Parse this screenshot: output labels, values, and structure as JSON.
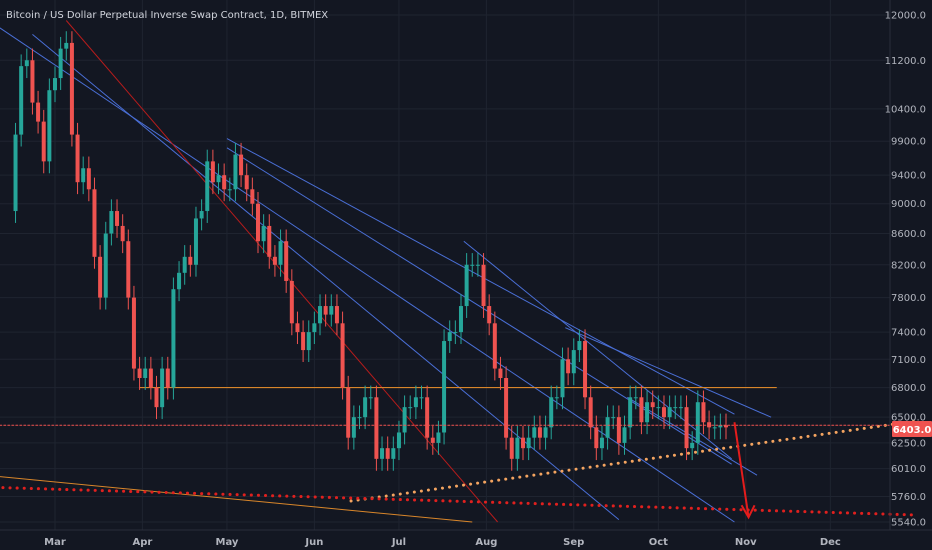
{
  "header": {
    "title": "Bitcoin / US Dollar Perpetual Inverse Swap Contract, 1D, BITMEX"
  },
  "colors": {
    "background": "#131722",
    "grid": "#1f2430",
    "up": "#26a69a",
    "down": "#ef5350",
    "blue_line": "#4a6fd6",
    "red_line": "#b71c1c",
    "orange_line": "#f7931a",
    "dotted_orange": "#f4a460",
    "dotted_red": "#e0201e",
    "price_tag": "#ef5350"
  },
  "chart_data": {
    "type": "candlestick",
    "title": "Bitcoin / US Dollar Perpetual Inverse Swap Contract, 1D, BITMEX",
    "x_tick_labels": [
      "Mar",
      "Apr",
      "May",
      "Jun",
      "Jul",
      "Aug",
      "Sep",
      "Oct",
      "Nov",
      "Dec"
    ],
    "y_tick_labels": [
      "12000.0",
      "11200.0",
      "10400.0",
      "9900.0",
      "9400.0",
      "9000.0",
      "8600.0",
      "8200.0",
      "7800.0",
      "7400.0",
      "7100.0",
      "6800.0",
      "6500.0",
      "6250.0",
      "6010.0",
      "5760.0",
      "5540.0"
    ],
    "y_scale": "log",
    "ylim": [
      5500,
      12400
    ],
    "last_price": 6403.0,
    "last_price_label": "6403.0",
    "candles_approx_daily_close": [
      [
        "2018-02-13",
        8900
      ],
      [
        "2018-02-15",
        10000
      ],
      [
        "2018-02-17",
        11100
      ],
      [
        "2018-02-19",
        11200
      ],
      [
        "2018-02-21",
        10500
      ],
      [
        "2018-02-23",
        10200
      ],
      [
        "2018-02-25",
        9600
      ],
      [
        "2018-02-27",
        10700
      ],
      [
        "2018-03-01",
        10900
      ],
      [
        "2018-03-03",
        11400
      ],
      [
        "2018-03-05",
        11500
      ],
      [
        "2018-03-07",
        10000
      ],
      [
        "2018-03-09",
        9300
      ],
      [
        "2018-03-11",
        9500
      ],
      [
        "2018-03-13",
        9200
      ],
      [
        "2018-03-15",
        8300
      ],
      [
        "2018-03-17",
        7800
      ],
      [
        "2018-03-19",
        8600
      ],
      [
        "2018-03-21",
        8900
      ],
      [
        "2018-03-23",
        8700
      ],
      [
        "2018-03-25",
        8500
      ],
      [
        "2018-03-27",
        7800
      ],
      [
        "2018-03-29",
        7000
      ],
      [
        "2018-03-31",
        6900
      ],
      [
        "2018-04-02",
        7000
      ],
      [
        "2018-04-04",
        6800
      ],
      [
        "2018-04-06",
        6600
      ],
      [
        "2018-04-08",
        7000
      ],
      [
        "2018-04-10",
        6800
      ],
      [
        "2018-04-12",
        7900
      ],
      [
        "2018-04-14",
        8100
      ],
      [
        "2018-04-16",
        8300
      ],
      [
        "2018-04-18",
        8200
      ],
      [
        "2018-04-20",
        8800
      ],
      [
        "2018-04-22",
        8900
      ],
      [
        "2018-04-24",
        9600
      ],
      [
        "2018-04-26",
        9300
      ],
      [
        "2018-04-28",
        9400
      ],
      [
        "2018-04-30",
        9200
      ],
      [
        "2018-05-02",
        9200
      ],
      [
        "2018-05-04",
        9700
      ],
      [
        "2018-05-06",
        9400
      ],
      [
        "2018-05-08",
        9200
      ],
      [
        "2018-05-10",
        9000
      ],
      [
        "2018-05-12",
        8500
      ],
      [
        "2018-05-14",
        8700
      ],
      [
        "2018-05-16",
        8300
      ],
      [
        "2018-05-18",
        8200
      ],
      [
        "2018-05-20",
        8500
      ],
      [
        "2018-05-22",
        8000
      ],
      [
        "2018-05-24",
        7500
      ],
      [
        "2018-05-26",
        7400
      ],
      [
        "2018-05-28",
        7200
      ],
      [
        "2018-05-30",
        7400
      ],
      [
        "2018-06-01",
        7500
      ],
      [
        "2018-06-03",
        7700
      ],
      [
        "2018-06-05",
        7600
      ],
      [
        "2018-06-07",
        7700
      ],
      [
        "2018-06-09",
        7500
      ],
      [
        "2018-06-11",
        6800
      ],
      [
        "2018-06-13",
        6300
      ],
      [
        "2018-06-15",
        6500
      ],
      [
        "2018-06-17",
        6500
      ],
      [
        "2018-06-19",
        6700
      ],
      [
        "2018-06-21",
        6700
      ],
      [
        "2018-06-23",
        6100
      ],
      [
        "2018-06-25",
        6200
      ],
      [
        "2018-06-27",
        6100
      ],
      [
        "2018-06-29",
        6200
      ],
      [
        "2018-07-01",
        6350
      ],
      [
        "2018-07-03",
        6600
      ],
      [
        "2018-07-05",
        6600
      ],
      [
        "2018-07-07",
        6700
      ],
      [
        "2018-07-09",
        6700
      ],
      [
        "2018-07-11",
        6300
      ],
      [
        "2018-07-13",
        6250
      ],
      [
        "2018-07-15",
        6350
      ],
      [
        "2018-07-17",
        7300
      ],
      [
        "2018-07-19",
        7400
      ],
      [
        "2018-07-21",
        7400
      ],
      [
        "2018-07-23",
        7700
      ],
      [
        "2018-07-25",
        8200
      ],
      [
        "2018-07-27",
        8200
      ],
      [
        "2018-07-29",
        8200
      ],
      [
        "2018-07-31",
        7700
      ],
      [
        "2018-08-02",
        7500
      ],
      [
        "2018-08-04",
        7000
      ],
      [
        "2018-08-06",
        6900
      ],
      [
        "2018-08-08",
        6300
      ],
      [
        "2018-08-10",
        6100
      ],
      [
        "2018-08-12",
        6300
      ],
      [
        "2018-08-14",
        6200
      ],
      [
        "2018-08-16",
        6300
      ],
      [
        "2018-08-18",
        6400
      ],
      [
        "2018-08-20",
        6300
      ],
      [
        "2018-08-22",
        6400
      ],
      [
        "2018-08-24",
        6700
      ],
      [
        "2018-08-26",
        6700
      ],
      [
        "2018-08-28",
        7100
      ],
      [
        "2018-08-30",
        6950
      ],
      [
        "2018-09-01",
        7200
      ],
      [
        "2018-09-03",
        7300
      ],
      [
        "2018-09-05",
        6700
      ],
      [
        "2018-09-07",
        6400
      ],
      [
        "2018-09-09",
        6200
      ],
      [
        "2018-09-11",
        6300
      ],
      [
        "2018-09-13",
        6500
      ],
      [
        "2018-09-15",
        6500
      ],
      [
        "2018-09-17",
        6250
      ],
      [
        "2018-09-19",
        6400
      ],
      [
        "2018-09-21",
        6700
      ],
      [
        "2018-09-23",
        6700
      ],
      [
        "2018-09-25",
        6450
      ],
      [
        "2018-09-27",
        6650
      ],
      [
        "2018-09-29",
        6600
      ],
      [
        "2018-10-01",
        6600
      ],
      [
        "2018-10-03",
        6500
      ],
      [
        "2018-10-05",
        6600
      ],
      [
        "2018-10-07",
        6600
      ],
      [
        "2018-10-09",
        6600
      ],
      [
        "2018-10-11",
        6200
      ],
      [
        "2018-10-13",
        6250
      ],
      [
        "2018-10-15",
        6650
      ],
      [
        "2018-10-17",
        6450
      ],
      [
        "2018-10-19",
        6400
      ],
      [
        "2018-10-21",
        6400
      ],
      [
        "2018-10-23",
        6420
      ],
      [
        "2018-10-25",
        6400
      ]
    ]
  }
}
